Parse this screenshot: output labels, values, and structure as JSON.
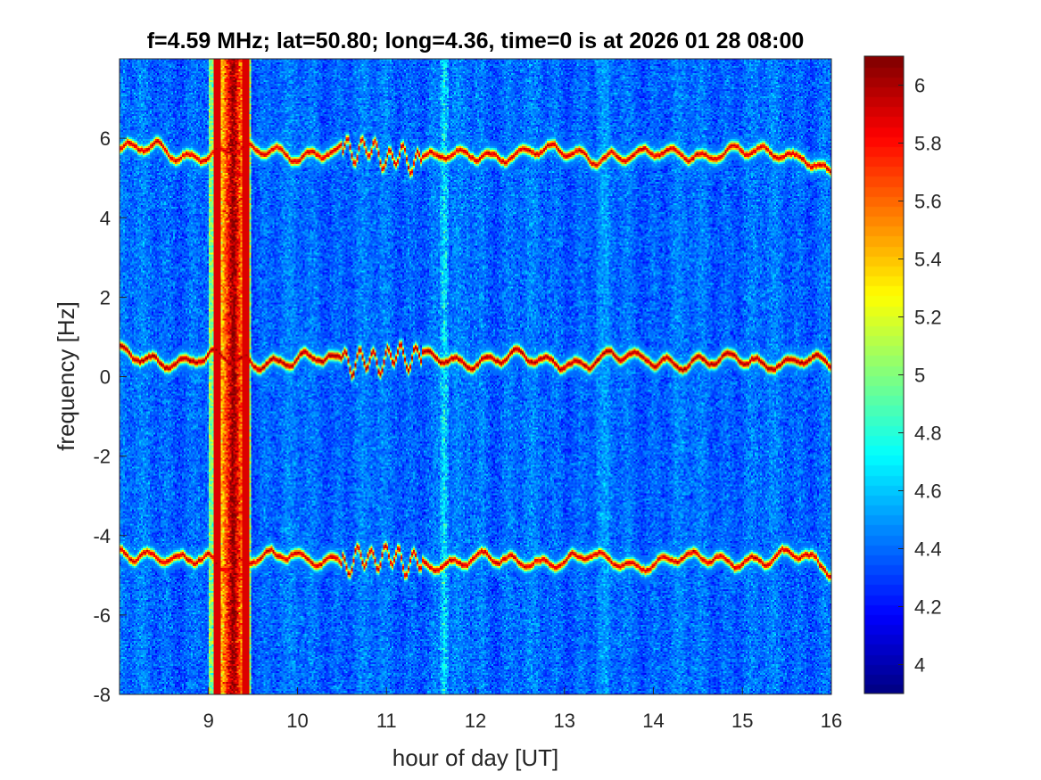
{
  "chart_data": {
    "type": "heatmap",
    "title": "f=4.59 MHz;  lat=50.80; long=4.36, time=0 is at 2026 01 28 08:00",
    "xlabel": "hour of day [UT]",
    "ylabel": "frequency [Hz]",
    "xlim": [
      8,
      16
    ],
    "ylim": [
      -8,
      8
    ],
    "xticks": [
      9,
      10,
      11,
      12,
      13,
      14,
      15,
      16
    ],
    "xtick_labels": [
      "9",
      "10",
      "11",
      "12",
      "13",
      "14",
      "15",
      "16"
    ],
    "yticks": [
      -8,
      -6,
      -4,
      -2,
      0,
      2,
      4,
      6
    ],
    "ytick_labels": [
      "-8",
      "-6",
      "-4",
      "-2",
      "0",
      "2",
      "4",
      "6"
    ],
    "colormap": "jet",
    "clim": [
      3.9,
      6.1
    ],
    "colorbar": {
      "ticks": [
        4,
        4.2,
        4.4,
        4.6,
        4.8,
        5,
        5.2,
        5.4,
        5.6,
        5.8,
        6
      ],
      "tick_labels": [
        "4",
        "4.2",
        "4.4",
        "4.6",
        "4.8",
        "5",
        "5.2",
        "5.4",
        "5.6",
        "5.8",
        "6"
      ]
    },
    "background_level": 4.4,
    "features": [
      {
        "kind": "horizontal_trace",
        "center_hz": 5.6,
        "level": 5.9,
        "x_range": [
          8,
          16
        ]
      },
      {
        "kind": "horizontal_trace",
        "center_hz": 0.4,
        "level": 6.0,
        "x_range": [
          8,
          16
        ]
      },
      {
        "kind": "horizontal_trace",
        "center_hz": -4.6,
        "level": 5.9,
        "x_range": [
          8,
          16
        ]
      },
      {
        "kind": "vertical_band",
        "x_range": [
          9.0,
          9.48
        ],
        "peak_x": 9.28,
        "level": 6.1
      },
      {
        "kind": "vertical_band",
        "x_range": [
          11.6,
          11.7
        ],
        "peak_x": 11.65,
        "level": 4.7
      }
    ]
  }
}
